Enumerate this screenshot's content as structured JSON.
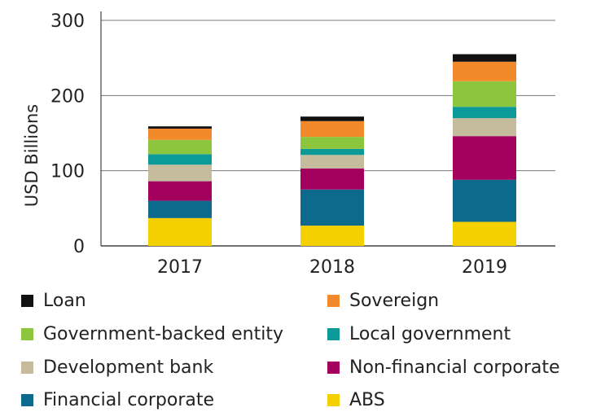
{
  "chart_data": {
    "type": "bar",
    "stacked": true,
    "categories": [
      "2017",
      "2018",
      "2019"
    ],
    "ylabel": "USD Billions",
    "ylim": [
      0,
      300
    ],
    "yticks": [
      0,
      100,
      200,
      300
    ],
    "grid": true,
    "legend_position": "bottom",
    "series": [
      {
        "name": "ABS",
        "color": "#f5d000",
        "values": [
          37,
          27,
          32
        ]
      },
      {
        "name": "Financial corporate",
        "color": "#0d6a8c",
        "values": [
          23,
          48,
          56
        ]
      },
      {
        "name": "Non-financial corporate",
        "color": "#a3005e",
        "values": [
          26,
          28,
          58
        ]
      },
      {
        "name": "Development bank",
        "color": "#c4bc9c",
        "values": [
          22,
          18,
          24
        ]
      },
      {
        "name": "Local government",
        "color": "#0c9a99",
        "values": [
          14,
          8,
          15
        ]
      },
      {
        "name": "Government-backed entity",
        "color": "#8cc63f",
        "values": [
          19,
          16,
          34
        ]
      },
      {
        "name": "Sovereign",
        "color": "#f28a2b",
        "values": [
          15,
          21,
          26
        ]
      },
      {
        "name": "Loan",
        "color": "#111111",
        "values": [
          3,
          6,
          10
        ]
      }
    ]
  },
  "legend": [
    {
      "label": "Loan",
      "color": "#111111"
    },
    {
      "label": "Sovereign",
      "color": "#f28a2b"
    },
    {
      "label": "Government-backed entity",
      "color": "#8cc63f"
    },
    {
      "label": "Local government",
      "color": "#0c9a99"
    },
    {
      "label": "Development bank",
      "color": "#c4bc9c"
    },
    {
      "label": "Non-financial corporate",
      "color": "#a3005e"
    },
    {
      "label": "Financial corporate",
      "color": "#0d6a8c"
    },
    {
      "label": "ABS",
      "color": "#f5d000"
    }
  ]
}
